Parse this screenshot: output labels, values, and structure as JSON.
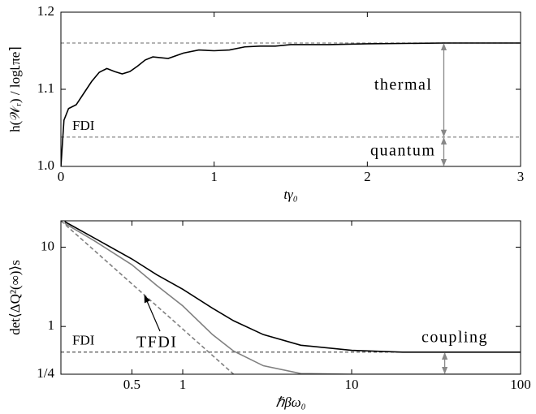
{
  "chart_data": [
    {
      "type": "line",
      "x_label": "tγ₀",
      "y_label": "h(𝒲ᵣ) / log⌊πe⌉",
      "x": [
        0,
        0.02,
        0.05,
        0.1,
        0.15,
        0.2,
        0.25,
        0.3,
        0.35,
        0.4,
        0.45,
        0.5,
        0.55,
        0.6,
        0.7,
        0.8,
        0.9,
        1.0,
        1.1,
        1.2,
        1.3,
        1.4,
        1.5,
        1.75,
        2.0,
        2.5,
        3.0
      ],
      "series": [
        {
          "color": "#000000",
          "values": [
            1.0,
            1.06,
            1.075,
            1.08,
            1.095,
            1.11,
            1.122,
            1.127,
            1.123,
            1.12,
            1.123,
            1.13,
            1.138,
            1.142,
            1.14,
            1.147,
            1.151,
            1.15,
            1.151,
            1.155,
            1.156,
            1.156,
            1.158,
            1.158,
            1.159,
            1.16,
            1.16
          ]
        }
      ],
      "hlines": [
        {
          "value": 1.16,
          "color": "#888888"
        },
        {
          "value": 1.038,
          "color": "#888888",
          "label": "FDI"
        }
      ],
      "annotations": [
        "thermal",
        "quantum"
      ],
      "xlim": [
        0,
        3
      ],
      "ylim": [
        1,
        1.2
      ],
      "xticks": [
        0,
        1,
        2,
        3
      ],
      "yticks": [
        {
          "value": 1,
          "label": "1.0"
        },
        1.1,
        1.2
      ]
    },
    {
      "type": "line",
      "x_label": "ℏβω₀",
      "y_label": "det⟨ΔQ²(∞)⟩s",
      "xscale": "log",
      "yscale": "log",
      "series": [
        {
          "color": "#000000",
          "dash": false,
          "x": [
            0.2,
            0.3,
            0.5,
            0.7,
            1,
            1.5,
            2,
            3,
            5,
            10,
            20,
            50,
            100
          ],
          "values": [
            21,
            13,
            7.1,
            4.5,
            2.95,
            1.7,
            1.18,
            0.79,
            0.58,
            0.5,
            0.475,
            0.475,
            0.475
          ]
        },
        {
          "color": "#808080",
          "dash": false,
          "x": [
            0.2,
            0.3,
            0.5,
            0.7,
            1,
            1.5,
            2,
            3,
            5,
            10,
            100
          ],
          "values": [
            20,
            12,
            6.0,
            3.3,
            1.82,
            0.79,
            0.49,
            0.32,
            0.255,
            0.25,
            0.25
          ]
        },
        {
          "color": "#808080",
          "dash": true,
          "x": [
            0.19,
            2.0
          ],
          "values": [
            21.5,
            0.25
          ]
        }
      ],
      "hlines": [
        {
          "value": 0.475,
          "color": "#555555",
          "label": "FDI"
        }
      ],
      "annotations": [
        "TFDI",
        "coupling"
      ],
      "xlim": [
        0.19,
        100
      ],
      "ylim": [
        0.25,
        21.5
      ],
      "xticks": [
        0.5,
        1,
        10,
        100
      ],
      "yticks": [
        {
          "value": 0.25,
          "label": "1/4"
        },
        1,
        10
      ]
    }
  ]
}
